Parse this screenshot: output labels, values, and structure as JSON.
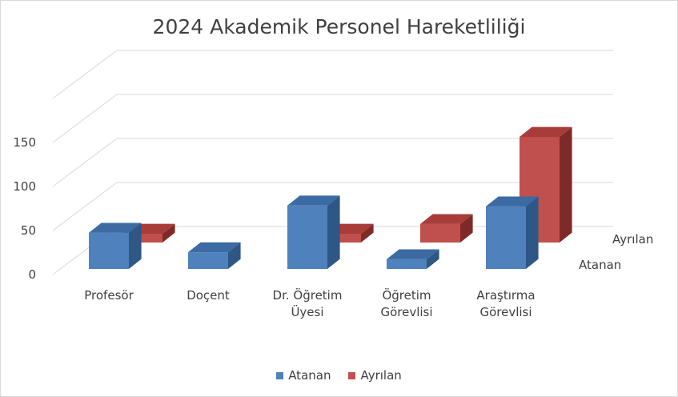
{
  "chart_data": {
    "type": "bar",
    "title": "2024 Akademik Personel Hareketliliği",
    "categories": [
      [
        "Profesör"
      ],
      [
        "Doçent"
      ],
      [
        "Dr. Öğretim",
        "Üyesi"
      ],
      [
        "Öğretim",
        "Görevlisi"
      ],
      [
        "Araştırma",
        "Görevlisi"
      ]
    ],
    "series": [
      {
        "name": "Atanan",
        "values": [
          41,
          19,
          72,
          11,
          71
        ]
      },
      {
        "name": "Ayrılan",
        "values": [
          10,
          0,
          10,
          21,
          120
        ]
      }
    ],
    "yticks": [
      "0",
      "50",
      "100",
      "150"
    ],
    "ylim": [
      0,
      200
    ],
    "grid": true,
    "three_d": true,
    "legend_position": "bottom",
    "colors": {
      "Atanan": {
        "front": "#4f81bd",
        "side": "#2e5786",
        "top": "#3c6aa3"
      },
      "Ayrılan": {
        "front": "#c0504d",
        "side": "#7f2a28",
        "top": "#a83c39"
      },
      "grid": "#d9d9d9",
      "text": "#404040"
    }
  }
}
